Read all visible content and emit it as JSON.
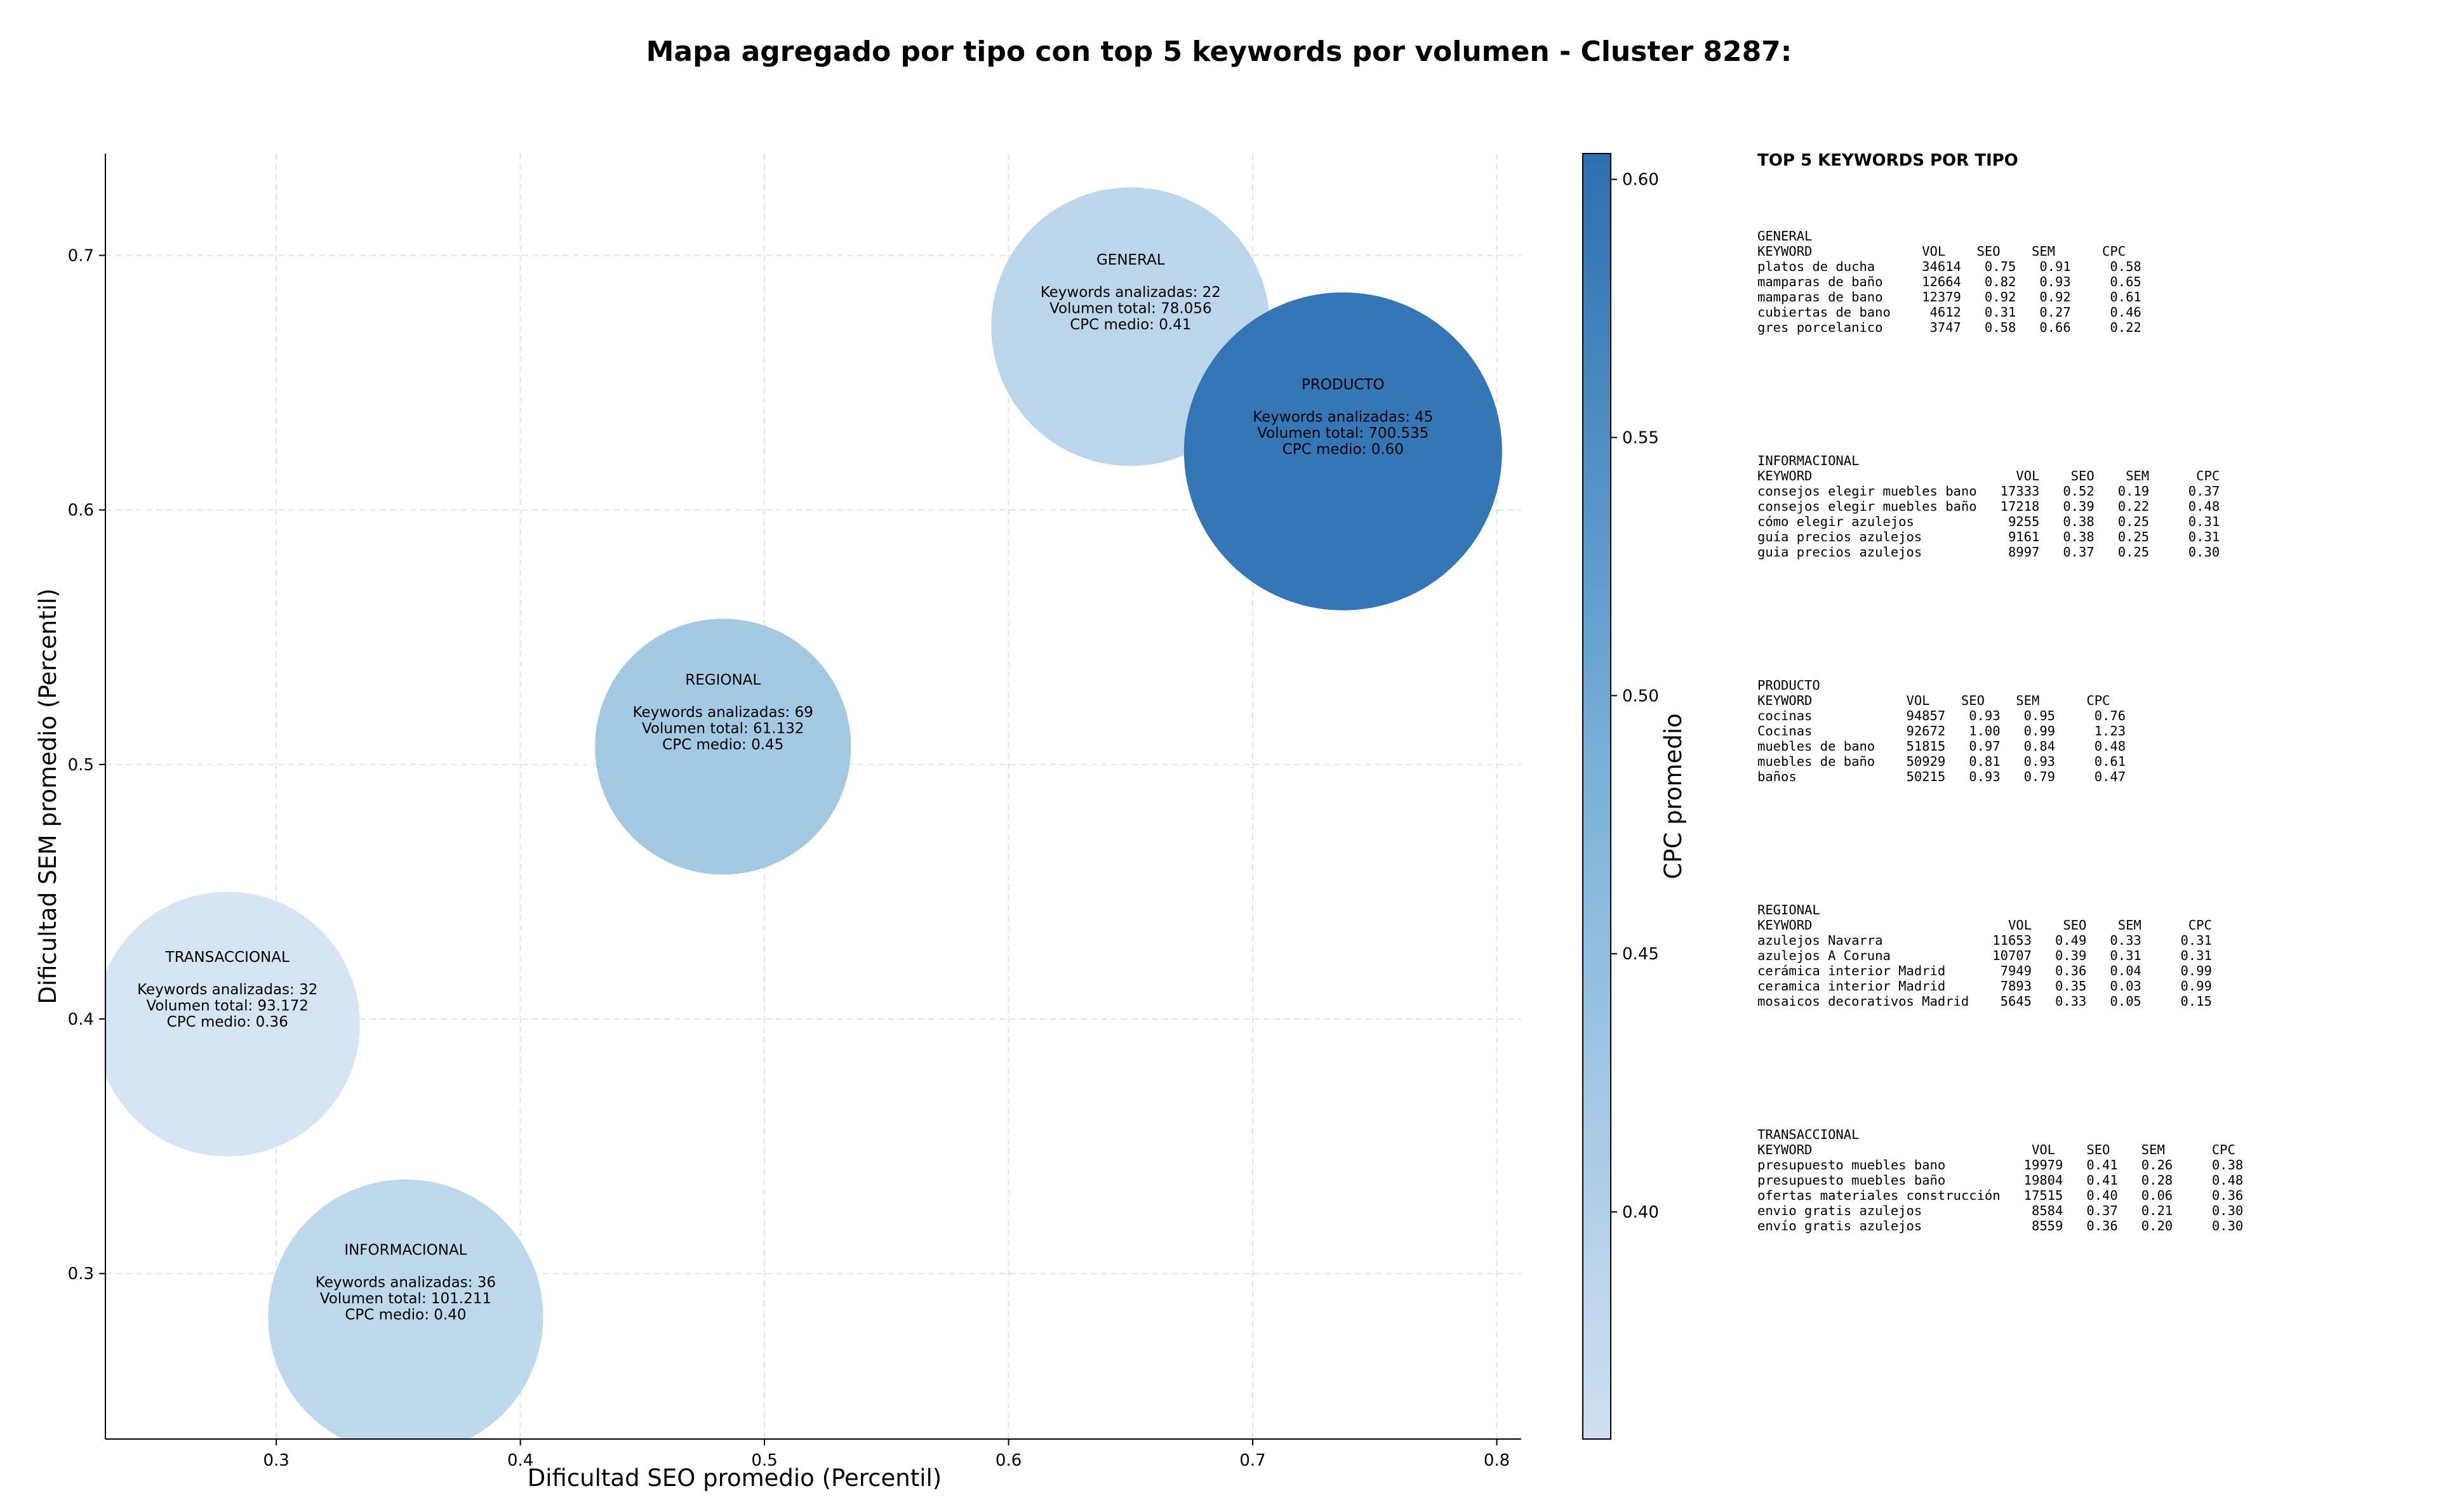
{
  "title": "Mapa agregado por tipo con top 5 keywords por volumen - Cluster 8287:",
  "chart_data": {
    "type": "scatter",
    "subtype": "bubble",
    "xlabel": "Dificultad SEO promedio (Percentil)",
    "ylabel": "Dificultad SEM promedio (Percentil)",
    "xlim": [
      0.23,
      0.81
    ],
    "ylim": [
      0.235,
      0.74
    ],
    "xticks": [
      0.3,
      0.4,
      0.5,
      0.6,
      0.7,
      0.8
    ],
    "yticks": [
      0.3,
      0.4,
      0.5,
      0.6,
      0.7
    ],
    "grid": true,
    "colorbar": {
      "label": "CPC promedio",
      "range": [
        0.356,
        0.605
      ],
      "ticks": [
        0.4,
        0.45,
        0.5,
        0.55,
        0.6
      ],
      "tick_labels": [
        "0.40",
        "0.45",
        "0.50",
        "0.55",
        "0.60"
      ],
      "color_low": "#d0e0f2",
      "color_high": "#2c6fb1"
    },
    "points": [
      {
        "name": "TRANSACCIONAL",
        "x": 0.28,
        "y": 0.398,
        "keywords_label": "Keywords analizadas: 32",
        "volume_label": "Volumen total: 93.172",
        "cpc_label": "CPC medio: 0.36",
        "cpc": 0.36,
        "volume": 93172,
        "color": "#d3e3f3"
      },
      {
        "name": "INFORMACIONAL",
        "x": 0.353,
        "y": 0.283,
        "keywords_label": "Keywords analizadas: 36",
        "volume_label": "Volumen total: 101.211",
        "cpc_label": "CPC medio: 0.40",
        "cpc": 0.4,
        "volume": 101211,
        "color": "#b8d5ea"
      },
      {
        "name": "REGIONAL",
        "x": 0.483,
        "y": 0.507,
        "keywords_label": "Keywords analizadas: 69",
        "volume_label": "Volumen total: 61.132",
        "cpc_label": "CPC medio: 0.45",
        "cpc": 0.45,
        "volume": 61132,
        "color": "#9cc5e1"
      },
      {
        "name": "GENERAL",
        "x": 0.65,
        "y": 0.672,
        "keywords_label": "Keywords analizadas: 22",
        "volume_label": "Volumen total: 78.056",
        "cpc_label": "CPC medio: 0.41",
        "cpc": 0.41,
        "volume": 78056,
        "color": "#b6d4e9"
      },
      {
        "name": "PRODUCTO",
        "x": 0.737,
        "y": 0.623,
        "keywords_label": "Keywords analizadas: 45",
        "volume_label": "Volumen total: 700.535",
        "cpc_label": "CPC medio: 0.60",
        "cpc": 0.6,
        "volume": 700535,
        "color": "#2e72b4"
      }
    ]
  },
  "tables": {
    "heading": "TOP 5 KEYWORDS POR TIPO",
    "blocks": [
      {
        "text": "GENERAL\nKEYWORD              VOL    SEO    SEM      CPC\nplatos de ducha      34614   0.75   0.91     0.58\nmamparas de baño     12664   0.82   0.93     0.65\nmamparas de bano     12379   0.92   0.92     0.61\ncubiertas de bano     4612   0.31   0.27     0.46\ngres porcelanico      3747   0.58   0.66     0.22"
      },
      {
        "text": "INFORMACIONAL\nKEYWORD                          VOL    SEO    SEM      CPC\nconsejos elegir muebles bano   17333   0.52   0.19     0.37\nconsejos elegir muebles baño   17218   0.39   0.22     0.48\ncómo elegir azulejos            9255   0.38   0.25     0.31\nguía precios azulejos           9161   0.38   0.25     0.31\nguia precios azulejos           8997   0.37   0.25     0.30"
      },
      {
        "text": "PRODUCTO\nKEYWORD            VOL    SEO    SEM      CPC\ncocinas            94857   0.93   0.95     0.76\nCocinas            92672   1.00   0.99     1.23\nmuebles de bano    51815   0.97   0.84     0.48\nmuebles de baño    50929   0.81   0.93     0.61\nbaños              50215   0.93   0.79     0.47"
      },
      {
        "text": "REGIONAL\nKEYWORD                         VOL    SEO    SEM      CPC\nazulejos Navarra              11653   0.49   0.33     0.31\nazulejos A Coruna             10707   0.39   0.31     0.31\ncerámica interior Madrid       7949   0.36   0.04     0.99\nceramica interior Madrid       7893   0.35   0.03     0.99\nmosaicos decorativos Madrid    5645   0.33   0.05     0.15"
      },
      {
        "text": "TRANSACCIONAL\nKEYWORD                            VOL    SEO    SEM      CPC\npresupuesto muebles bano          19979   0.41   0.26     0.38\npresupuesto muebles baño          19804   0.41   0.28     0.48\nofertas materiales construcción   17515   0.40   0.06     0.36\nenvio gratis azulejos              8584   0.37   0.21     0.30\nenvío gratis azulejos              8559   0.36   0.20     0.30"
      }
    ]
  }
}
